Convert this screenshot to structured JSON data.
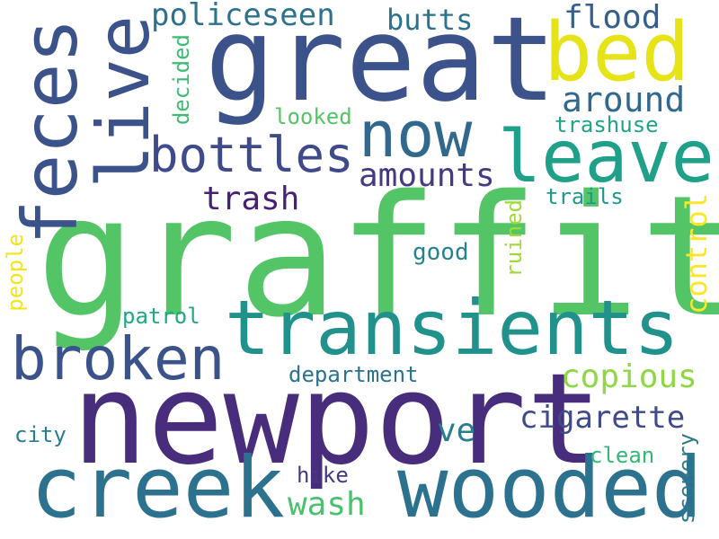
{
  "words": [
    {
      "text": "graffiti",
      "color": "#54c566",
      "vertical": false
    },
    {
      "text": "newport",
      "color": "#472d7b",
      "vertical": false
    },
    {
      "text": "great",
      "color": "#3b528b",
      "vertical": false
    },
    {
      "text": "transients",
      "color": "#21918c",
      "vertical": false
    },
    {
      "text": "wooded",
      "color": "#2c728e",
      "vertical": false
    },
    {
      "text": "creek",
      "color": "#2c728e",
      "vertical": false
    },
    {
      "text": "feces",
      "color": "#3b528b",
      "vertical": true
    },
    {
      "text": "live",
      "color": "#3b528b",
      "vertical": true
    },
    {
      "text": "broken",
      "color": "#3b528b",
      "vertical": false
    },
    {
      "text": "leave",
      "color": "#1fa088",
      "vertical": false
    },
    {
      "text": "now",
      "color": "#31688e",
      "vertical": false
    },
    {
      "text": "bed",
      "color": "#e6e419",
      "vertical": false
    },
    {
      "text": "bottles",
      "color": "#3e4a89",
      "vertical": false
    },
    {
      "text": "policeseen",
      "color": "#2c728e",
      "vertical": false
    },
    {
      "text": "butts",
      "color": "#2c728e",
      "vertical": false
    },
    {
      "text": "flood",
      "color": "#35608d",
      "vertical": false
    },
    {
      "text": "around",
      "color": "#31688e",
      "vertical": false
    },
    {
      "text": "amounts",
      "color": "#443a83",
      "vertical": false
    },
    {
      "text": "trash",
      "color": "#482173",
      "vertical": false
    },
    {
      "text": "copious",
      "color": "#8fd744",
      "vertical": false
    },
    {
      "text": "cigarette",
      "color": "#3e4a89",
      "vertical": false
    },
    {
      "text": "control",
      "color": "#fde725",
      "vertical": true
    },
    {
      "text": "ve",
      "color": "#287d8e",
      "vertical": false
    },
    {
      "text": "wash",
      "color": "#4ac16d",
      "vertical": false
    },
    {
      "text": "department",
      "color": "#2c728e",
      "vertical": false
    },
    {
      "text": "decided",
      "color": "#3dbc74",
      "vertical": true
    },
    {
      "text": "looked",
      "color": "#54c566",
      "vertical": false
    },
    {
      "text": "trashuse",
      "color": "#20a386",
      "vertical": false
    },
    {
      "text": "trails",
      "color": "#1f988b",
      "vertical": false
    },
    {
      "text": "ruined",
      "color": "#9fda3a",
      "vertical": true
    },
    {
      "text": "good",
      "color": "#26828e",
      "vertical": false
    },
    {
      "text": "people",
      "color": "#f1e51d",
      "vertical": true
    },
    {
      "text": "patrol",
      "color": "#22a785",
      "vertical": false
    },
    {
      "text": "city",
      "color": "#287d8e",
      "vertical": false
    },
    {
      "text": "hike",
      "color": "#453882",
      "vertical": false
    },
    {
      "text": "clean",
      "color": "#35b779",
      "vertical": false
    },
    {
      "text": "scenery",
      "color": "#2a788e",
      "vertical": true
    }
  ]
}
